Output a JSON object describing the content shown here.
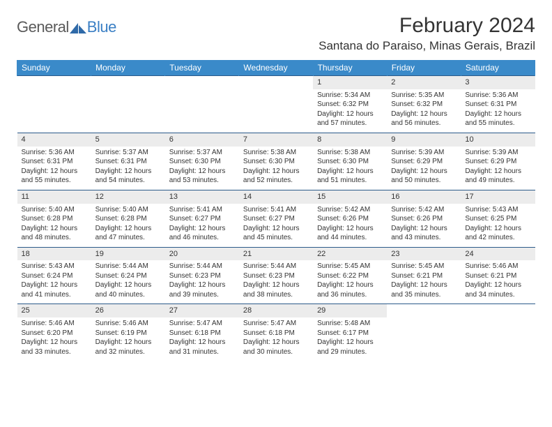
{
  "logo": {
    "general": "General",
    "blue": "Blue"
  },
  "title": "February 2024",
  "location": "Santana do Paraiso, Minas Gerais, Brazil",
  "colors": {
    "header_bg": "#3a8ac9",
    "header_text": "#ffffff",
    "row_border": "#2b5a8a",
    "daynum_bg": "#ececec",
    "body_text": "#333333",
    "logo_gray": "#5a5a5a",
    "logo_blue": "#3a7fc4",
    "page_bg": "#ffffff"
  },
  "typography": {
    "title_fontsize": 30,
    "location_fontsize": 17,
    "weekday_fontsize": 12,
    "daynum_fontsize": 11,
    "cell_fontsize": 10
  },
  "weekdays": [
    "Sunday",
    "Monday",
    "Tuesday",
    "Wednesday",
    "Thursday",
    "Friday",
    "Saturday"
  ],
  "weeks": [
    [
      {
        "empty": true
      },
      {
        "empty": true
      },
      {
        "empty": true
      },
      {
        "empty": true
      },
      {
        "day": "1",
        "sunrise": "Sunrise: 5:34 AM",
        "sunset": "Sunset: 6:32 PM",
        "daylight": "Daylight: 12 hours and 57 minutes."
      },
      {
        "day": "2",
        "sunrise": "Sunrise: 5:35 AM",
        "sunset": "Sunset: 6:32 PM",
        "daylight": "Daylight: 12 hours and 56 minutes."
      },
      {
        "day": "3",
        "sunrise": "Sunrise: 5:36 AM",
        "sunset": "Sunset: 6:31 PM",
        "daylight": "Daylight: 12 hours and 55 minutes."
      }
    ],
    [
      {
        "day": "4",
        "sunrise": "Sunrise: 5:36 AM",
        "sunset": "Sunset: 6:31 PM",
        "daylight": "Daylight: 12 hours and 55 minutes."
      },
      {
        "day": "5",
        "sunrise": "Sunrise: 5:37 AM",
        "sunset": "Sunset: 6:31 PM",
        "daylight": "Daylight: 12 hours and 54 minutes."
      },
      {
        "day": "6",
        "sunrise": "Sunrise: 5:37 AM",
        "sunset": "Sunset: 6:30 PM",
        "daylight": "Daylight: 12 hours and 53 minutes."
      },
      {
        "day": "7",
        "sunrise": "Sunrise: 5:38 AM",
        "sunset": "Sunset: 6:30 PM",
        "daylight": "Daylight: 12 hours and 52 minutes."
      },
      {
        "day": "8",
        "sunrise": "Sunrise: 5:38 AM",
        "sunset": "Sunset: 6:30 PM",
        "daylight": "Daylight: 12 hours and 51 minutes."
      },
      {
        "day": "9",
        "sunrise": "Sunrise: 5:39 AM",
        "sunset": "Sunset: 6:29 PM",
        "daylight": "Daylight: 12 hours and 50 minutes."
      },
      {
        "day": "10",
        "sunrise": "Sunrise: 5:39 AM",
        "sunset": "Sunset: 6:29 PM",
        "daylight": "Daylight: 12 hours and 49 minutes."
      }
    ],
    [
      {
        "day": "11",
        "sunrise": "Sunrise: 5:40 AM",
        "sunset": "Sunset: 6:28 PM",
        "daylight": "Daylight: 12 hours and 48 minutes."
      },
      {
        "day": "12",
        "sunrise": "Sunrise: 5:40 AM",
        "sunset": "Sunset: 6:28 PM",
        "daylight": "Daylight: 12 hours and 47 minutes."
      },
      {
        "day": "13",
        "sunrise": "Sunrise: 5:41 AM",
        "sunset": "Sunset: 6:27 PM",
        "daylight": "Daylight: 12 hours and 46 minutes."
      },
      {
        "day": "14",
        "sunrise": "Sunrise: 5:41 AM",
        "sunset": "Sunset: 6:27 PM",
        "daylight": "Daylight: 12 hours and 45 minutes."
      },
      {
        "day": "15",
        "sunrise": "Sunrise: 5:42 AM",
        "sunset": "Sunset: 6:26 PM",
        "daylight": "Daylight: 12 hours and 44 minutes."
      },
      {
        "day": "16",
        "sunrise": "Sunrise: 5:42 AM",
        "sunset": "Sunset: 6:26 PM",
        "daylight": "Daylight: 12 hours and 43 minutes."
      },
      {
        "day": "17",
        "sunrise": "Sunrise: 5:43 AM",
        "sunset": "Sunset: 6:25 PM",
        "daylight": "Daylight: 12 hours and 42 minutes."
      }
    ],
    [
      {
        "day": "18",
        "sunrise": "Sunrise: 5:43 AM",
        "sunset": "Sunset: 6:24 PM",
        "daylight": "Daylight: 12 hours and 41 minutes."
      },
      {
        "day": "19",
        "sunrise": "Sunrise: 5:44 AM",
        "sunset": "Sunset: 6:24 PM",
        "daylight": "Daylight: 12 hours and 40 minutes."
      },
      {
        "day": "20",
        "sunrise": "Sunrise: 5:44 AM",
        "sunset": "Sunset: 6:23 PM",
        "daylight": "Daylight: 12 hours and 39 minutes."
      },
      {
        "day": "21",
        "sunrise": "Sunrise: 5:44 AM",
        "sunset": "Sunset: 6:23 PM",
        "daylight": "Daylight: 12 hours and 38 minutes."
      },
      {
        "day": "22",
        "sunrise": "Sunrise: 5:45 AM",
        "sunset": "Sunset: 6:22 PM",
        "daylight": "Daylight: 12 hours and 36 minutes."
      },
      {
        "day": "23",
        "sunrise": "Sunrise: 5:45 AM",
        "sunset": "Sunset: 6:21 PM",
        "daylight": "Daylight: 12 hours and 35 minutes."
      },
      {
        "day": "24",
        "sunrise": "Sunrise: 5:46 AM",
        "sunset": "Sunset: 6:21 PM",
        "daylight": "Daylight: 12 hours and 34 minutes."
      }
    ],
    [
      {
        "day": "25",
        "sunrise": "Sunrise: 5:46 AM",
        "sunset": "Sunset: 6:20 PM",
        "daylight": "Daylight: 12 hours and 33 minutes."
      },
      {
        "day": "26",
        "sunrise": "Sunrise: 5:46 AM",
        "sunset": "Sunset: 6:19 PM",
        "daylight": "Daylight: 12 hours and 32 minutes."
      },
      {
        "day": "27",
        "sunrise": "Sunrise: 5:47 AM",
        "sunset": "Sunset: 6:18 PM",
        "daylight": "Daylight: 12 hours and 31 minutes."
      },
      {
        "day": "28",
        "sunrise": "Sunrise: 5:47 AM",
        "sunset": "Sunset: 6:18 PM",
        "daylight": "Daylight: 12 hours and 30 minutes."
      },
      {
        "day": "29",
        "sunrise": "Sunrise: 5:48 AM",
        "sunset": "Sunset: 6:17 PM",
        "daylight": "Daylight: 12 hours and 29 minutes."
      },
      {
        "empty": true
      },
      {
        "empty": true
      }
    ]
  ]
}
